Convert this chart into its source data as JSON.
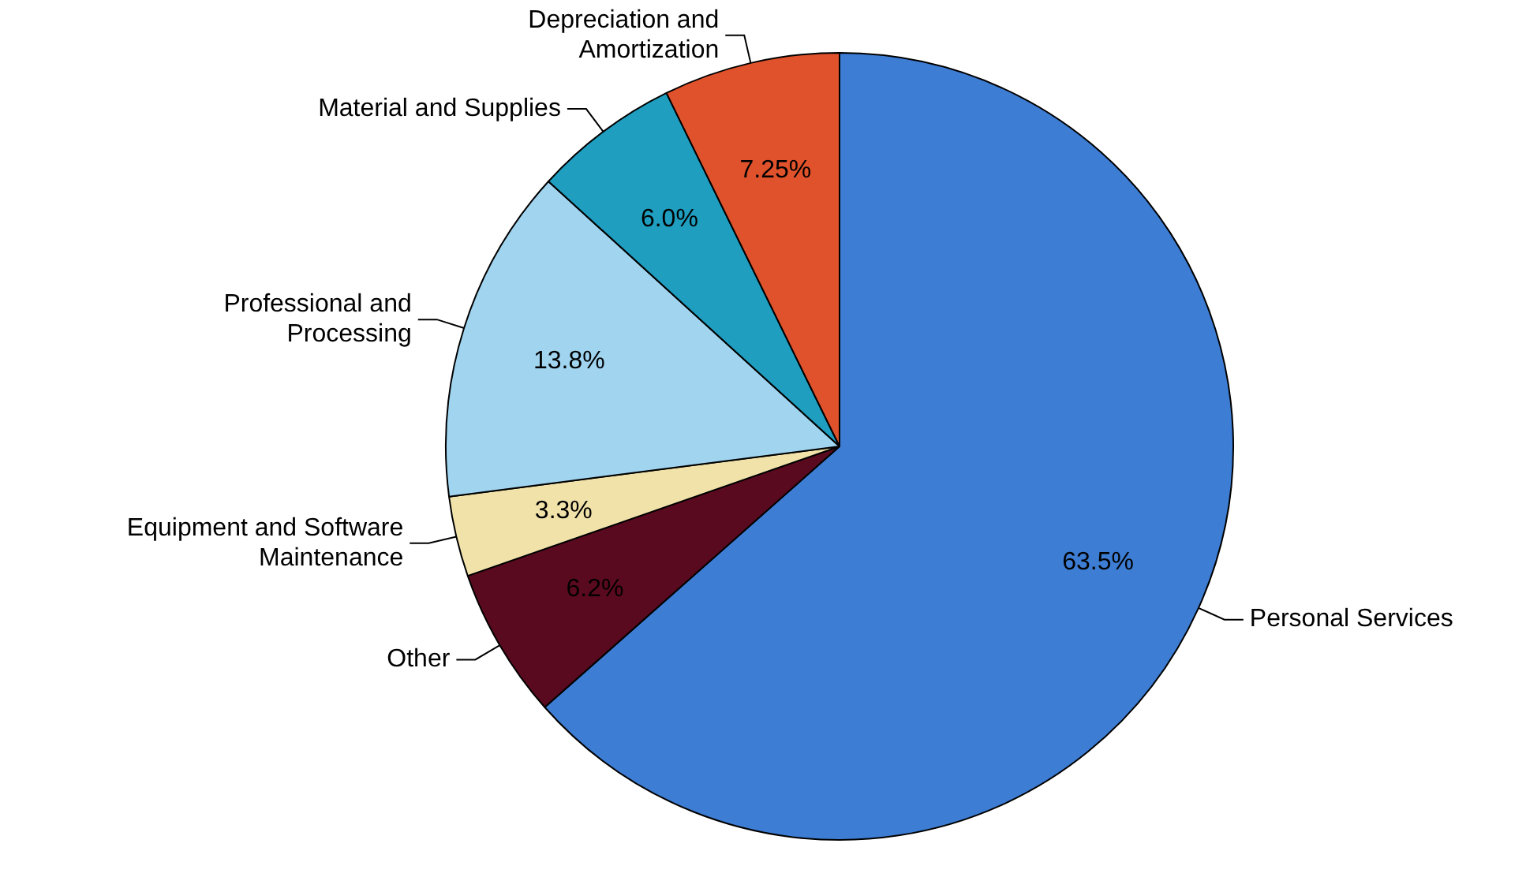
{
  "chart_data": {
    "type": "pie",
    "categories": [
      "Personal Services",
      "Other",
      "Equipment and Software Maintenance",
      "Professional and Processing",
      "Material and Supplies",
      "Depreciation and Amortization"
    ],
    "values": [
      63.5,
      6.2,
      3.3,
      13.8,
      6.0,
      7.25
    ],
    "colors": [
      "#3d7dd3",
      "#5a0a1e",
      "#f1e2aa",
      "#a0d4ef",
      "#1f9ec0",
      "#e0522b"
    ],
    "value_labels": [
      "63.5%",
      "6.2%",
      "3.3%",
      "13.8%",
      "6.0%",
      "7.25%"
    ],
    "legend": false
  }
}
